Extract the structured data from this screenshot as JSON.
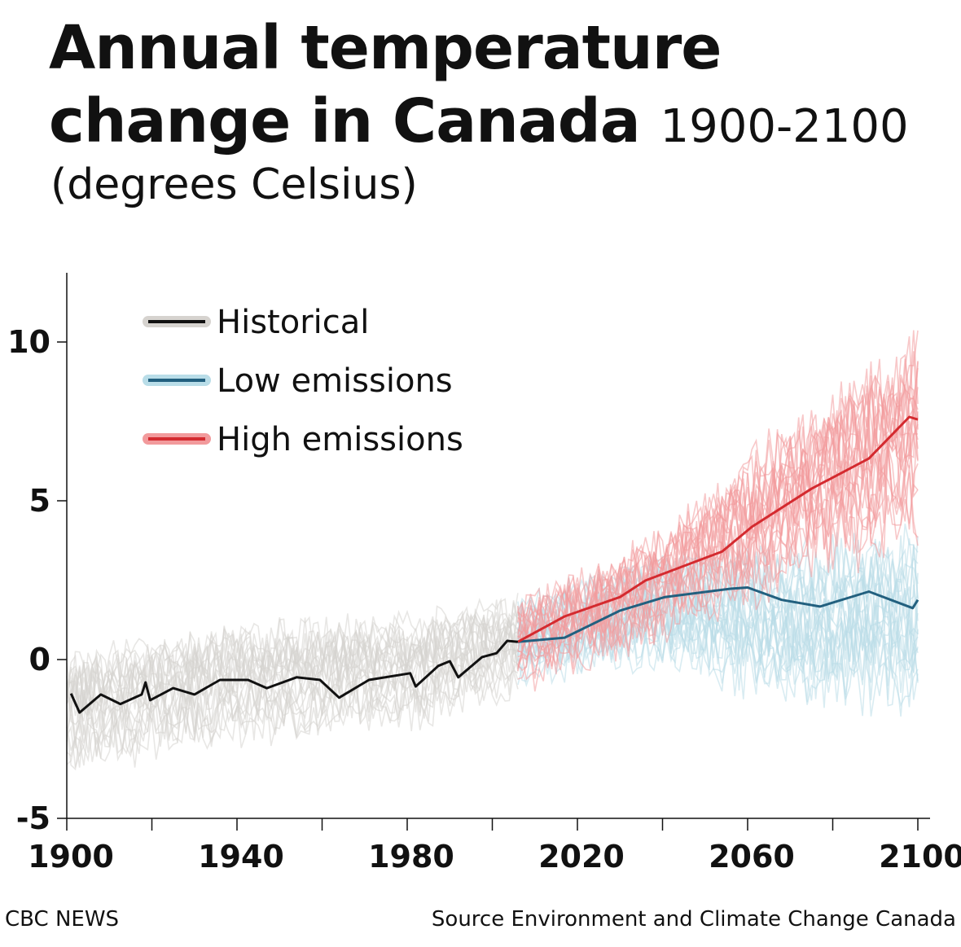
{
  "header": {
    "title_line1": "Annual temperature",
    "title_line2": "change in Canada",
    "title_range": "1900-2100",
    "subtitle": "(degrees Celsius)"
  },
  "footer": {
    "brand": "CBC NEWS",
    "source": "Source Environment and Climate Change Canada"
  },
  "chart_data": {
    "type": "line",
    "title": "Annual temperature change in Canada 1900-2100",
    "ylabel": "(degrees Celsius)",
    "xlim": [
      1900,
      2100
    ],
    "ylim": [
      -5,
      12
    ],
    "x_ticks": [
      1900,
      1920,
      1940,
      1960,
      1980,
      2000,
      2020,
      2040,
      2060,
      2080,
      2100
    ],
    "x_tick_labels": [
      "1900",
      "1940",
      "1980",
      "2020",
      "2060",
      "2100"
    ],
    "x_tick_label_values": [
      1900,
      1940,
      1980,
      2020,
      2060,
      2100
    ],
    "y_ticks": [
      10,
      5,
      0,
      -5
    ],
    "y_tick_labels": [
      "10",
      "5",
      "0",
      "-5"
    ],
    "grid": false,
    "legend_position": "top-left",
    "series": [
      {
        "name": "Historical",
        "color": "#111111",
        "band_color": "#d6d3cf",
        "x": [
          1901,
          1903,
          1908,
          1912.6,
          1917.6,
          1918.5,
          1919.6,
          1925,
          1930,
          1936,
          1942.6,
          1947,
          1954,
          1959.5,
          1964,
          1971,
          1980.7,
          1982,
          1987.3,
          1990,
          1992,
          1997.6,
          2001,
          2003.5,
          2006
        ],
        "y": [
          -1.07,
          -1.67,
          -1.1,
          -1.4,
          -1.1,
          -0.72,
          -1.28,
          -0.9,
          -1.1,
          -0.64,
          -0.64,
          -0.9,
          -0.56,
          -0.64,
          -1.2,
          -0.64,
          -0.43,
          -0.85,
          -0.2,
          -0.05,
          -0.56,
          0.08,
          0.2,
          0.59,
          0.56
        ],
        "ensemble_range": {
          "x": [
            1900,
            1940,
            1980,
            2006
          ],
          "low": [
            -3.8,
            -2.8,
            -2.4,
            -1.2
          ],
          "high": [
            0.5,
            1.3,
            1.6,
            2.2
          ]
        }
      },
      {
        "name": "Low emissions",
        "color": "#22607f",
        "band_color": "#b9dde8",
        "x": [
          2006,
          2017,
          2030,
          2040.6,
          2056,
          2060,
          2068,
          2077,
          2088.5,
          2098.8,
          2100
        ],
        "y": [
          0.56,
          0.69,
          1.54,
          1.97,
          2.23,
          2.27,
          1.88,
          1.67,
          2.14,
          1.62,
          1.88
        ],
        "ensemble_range": {
          "x": [
            2006,
            2040,
            2070,
            2100
          ],
          "low": [
            -1.0,
            -0.3,
            -1.8,
            -1.8
          ],
          "high": [
            2.2,
            3.5,
            4.0,
            4.5
          ]
        }
      },
      {
        "name": "High emissions",
        "color": "#d42a2f",
        "band_color": "#f29a9c",
        "x": [
          2006,
          2017,
          2030,
          2036,
          2054,
          2061,
          2075,
          2088.5,
          2098,
          2100
        ],
        "y": [
          0.56,
          1.36,
          1.97,
          2.49,
          3.4,
          4.18,
          5.38,
          6.33,
          7.64,
          7.56
        ],
        "ensemble_range": {
          "x": [
            2006,
            2040,
            2070,
            2100
          ],
          "low": [
            -1.2,
            0.3,
            2.0,
            3.0
          ],
          "high": [
            2.2,
            4.5,
            8.0,
            11.2
          ]
        }
      }
    ]
  }
}
